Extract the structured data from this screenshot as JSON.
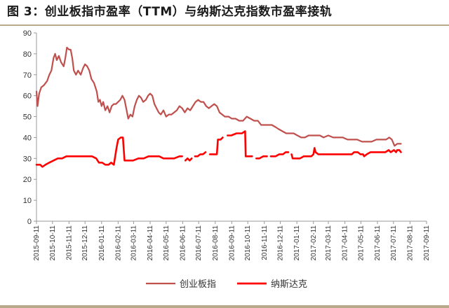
{
  "title": "图 3：创业板指市盈率（TTM）与纳斯达克指数市盈率接轨",
  "colors": {
    "chinext": "#c0504d",
    "nasdaq": "#ff0000",
    "rule": "#b8a98a"
  },
  "chart_data": {
    "type": "line",
    "ylim": [
      0,
      90
    ],
    "yticks": [
      0,
      10,
      20,
      30,
      40,
      50,
      60,
      70,
      80,
      90
    ],
    "x_ticks": [
      "2015-09-11",
      "2015-10-11",
      "2015-11-11",
      "2015-12-11",
      "2016-01-11",
      "2016-02-11",
      "2016-03-11",
      "2016-04-11",
      "2016-05-11",
      "2016-06-11",
      "2016-07-11",
      "2016-08-11",
      "2016-09-11",
      "2016-10-11",
      "2016-11-11",
      "2016-12-11",
      "2017-01-11",
      "2017-02-11",
      "2017-03-11",
      "2017-04-11",
      "2017-05-11",
      "2017-06-11",
      "2017-07-11",
      "2017-08-11",
      "2017-09-11"
    ],
    "legend_position": "bottom",
    "grid": false,
    "series": [
      {
        "name": "创业板指",
        "color_key": "chinext",
        "points": [
          [
            "2015-09-11",
            62
          ],
          [
            "2015-09-13",
            55
          ],
          [
            "2015-09-16",
            61
          ],
          [
            "2015-09-20",
            64
          ],
          [
            "2015-09-25",
            65
          ],
          [
            "2015-10-01",
            67
          ],
          [
            "2015-10-05",
            70
          ],
          [
            "2015-10-09",
            72
          ],
          [
            "2015-10-13",
            78
          ],
          [
            "2015-10-16",
            80
          ],
          [
            "2015-10-19",
            77
          ],
          [
            "2015-10-23",
            79
          ],
          [
            "2015-10-27",
            76
          ],
          [
            "2015-11-01",
            74
          ],
          [
            "2015-11-04",
            78
          ],
          [
            "2015-11-07",
            83
          ],
          [
            "2015-11-11",
            82
          ],
          [
            "2015-11-14",
            82
          ],
          [
            "2015-11-17",
            78
          ],
          [
            "2015-11-20",
            72
          ],
          [
            "2015-11-24",
            70
          ],
          [
            "2015-11-28",
            72
          ],
          [
            "2015-12-03",
            70
          ],
          [
            "2015-12-07",
            73
          ],
          [
            "2015-12-11",
            75
          ],
          [
            "2015-12-15",
            74
          ],
          [
            "2015-12-19",
            72
          ],
          [
            "2015-12-23",
            68
          ],
          [
            "2015-12-28",
            66
          ],
          [
            "2016-01-02",
            62
          ],
          [
            "2016-01-05",
            57
          ],
          [
            "2016-01-08",
            58
          ],
          [
            "2016-01-11",
            55
          ],
          [
            "2016-01-14",
            57
          ],
          [
            "2016-01-18",
            53
          ],
          [
            "2016-01-22",
            55
          ],
          [
            "2016-01-26",
            52
          ],
          [
            "2016-01-30",
            55
          ],
          [
            "2016-02-03",
            56
          ],
          [
            "2016-02-07",
            56
          ],
          [
            "2016-02-11",
            57
          ],
          [
            "2016-02-15",
            58
          ],
          [
            "2016-02-19",
            60
          ],
          [
            "2016-02-23",
            58
          ],
          [
            "2016-02-27",
            53
          ],
          [
            "2016-03-01",
            49
          ],
          [
            "2016-03-05",
            51
          ],
          [
            "2016-03-09",
            50
          ],
          [
            "2016-03-13",
            55
          ],
          [
            "2016-03-17",
            58
          ],
          [
            "2016-03-21",
            60
          ],
          [
            "2016-03-25",
            59
          ],
          [
            "2016-03-29",
            57
          ],
          [
            "2016-04-03",
            58
          ],
          [
            "2016-04-07",
            60
          ],
          [
            "2016-04-11",
            61
          ],
          [
            "2016-04-15",
            60
          ],
          [
            "2016-04-19",
            56
          ],
          [
            "2016-04-23",
            54
          ],
          [
            "2016-04-27",
            52
          ],
          [
            "2016-05-01",
            51
          ],
          [
            "2016-05-06",
            53
          ],
          [
            "2016-05-11",
            50
          ],
          [
            "2016-05-16",
            51
          ],
          [
            "2016-05-21",
            51
          ],
          [
            "2016-05-26",
            52
          ],
          [
            "2016-05-31",
            53
          ],
          [
            "2016-06-05",
            55
          ],
          [
            "2016-06-10",
            54
          ],
          [
            "2016-06-15",
            52
          ],
          [
            "2016-06-20",
            54
          ],
          [
            "2016-06-25",
            53
          ],
          [
            "2016-06-30",
            55
          ],
          [
            "2016-07-05",
            57
          ],
          [
            "2016-07-10",
            58
          ],
          [
            "2016-07-15",
            57
          ],
          [
            "2016-07-20",
            57
          ],
          [
            "2016-07-25",
            55
          ],
          [
            "2016-07-30",
            54
          ],
          [
            "2016-08-04",
            55
          ],
          [
            "2016-08-09",
            56
          ],
          [
            "2016-08-14",
            55
          ],
          [
            "2016-08-19",
            52
          ],
          [
            "2016-08-24",
            51
          ],
          [
            "2016-08-29",
            50
          ],
          [
            "2016-09-05",
            50
          ],
          [
            "2016-09-11",
            49
          ],
          [
            "2016-09-18",
            49
          ],
          [
            "2016-09-25",
            48
          ],
          [
            "2016-10-02",
            48
          ],
          [
            "2016-10-09",
            50
          ],
          [
            "2016-10-16",
            49
          ],
          [
            "2016-10-23",
            48
          ],
          [
            "2016-10-30",
            48
          ],
          [
            "2016-11-05",
            46
          ],
          [
            "2016-11-11",
            46
          ],
          [
            "2016-11-18",
            46
          ],
          [
            "2016-11-25",
            46
          ],
          [
            "2016-12-02",
            45
          ],
          [
            "2016-12-08",
            44
          ],
          [
            "2016-12-15",
            43
          ],
          [
            "2016-12-22",
            42
          ],
          [
            "2016-12-29",
            42
          ],
          [
            "2017-01-05",
            42
          ],
          [
            "2017-01-12",
            41
          ],
          [
            "2017-01-19",
            40
          ],
          [
            "2017-01-26",
            40
          ],
          [
            "2017-02-02",
            41
          ],
          [
            "2017-02-09",
            41
          ],
          [
            "2017-02-16",
            41
          ],
          [
            "2017-02-23",
            41
          ],
          [
            "2017-03-02",
            40
          ],
          [
            "2017-03-11",
            41
          ],
          [
            "2017-03-20",
            40
          ],
          [
            "2017-03-29",
            40
          ],
          [
            "2017-04-07",
            40
          ],
          [
            "2017-04-16",
            39
          ],
          [
            "2017-04-25",
            39
          ],
          [
            "2017-05-04",
            39
          ],
          [
            "2017-05-13",
            38
          ],
          [
            "2017-05-22",
            38
          ],
          [
            "2017-05-31",
            38
          ],
          [
            "2017-06-09",
            39
          ],
          [
            "2017-06-18",
            39
          ],
          [
            "2017-06-27",
            39
          ],
          [
            "2017-07-03",
            40
          ],
          [
            "2017-07-08",
            39
          ],
          [
            "2017-07-13",
            36
          ],
          [
            "2017-07-18",
            37
          ],
          [
            "2017-07-25",
            37
          ]
        ]
      },
      {
        "name": "纳斯达克",
        "color_key": "nasdaq",
        "points": [
          [
            "2015-09-11",
            27
          ],
          [
            "2015-09-18",
            27
          ],
          [
            "2015-09-22",
            26
          ],
          [
            "2015-09-28",
            27
          ],
          [
            "2015-10-05",
            28
          ],
          [
            "2015-10-13",
            29
          ],
          [
            "2015-10-21",
            30
          ],
          [
            "2015-10-29",
            30
          ],
          [
            "2015-11-06",
            31
          ],
          [
            "2015-11-14",
            31
          ],
          [
            "2015-11-22",
            31
          ],
          [
            "2015-11-30",
            31
          ],
          [
            "2015-12-08",
            31
          ],
          [
            "2015-12-16",
            31
          ],
          [
            "2015-12-24",
            31
          ],
          [
            "2016-01-01",
            30
          ],
          [
            "2016-01-06",
            28
          ],
          [
            "2016-01-12",
            28
          ],
          [
            "2016-01-18",
            27
          ],
          [
            "2016-01-24",
            27
          ],
          [
            "2016-01-29",
            28
          ],
          [
            "2016-02-03",
            27
          ],
          [
            "2016-02-08",
            35
          ],
          [
            "2016-02-11",
            39
          ],
          [
            "2016-02-16",
            40
          ],
          [
            "2016-02-20",
            40
          ],
          [
            "2016-02-23",
            29
          ],
          [
            "2016-03-01",
            29
          ],
          [
            "2016-03-10",
            29
          ],
          [
            "2016-03-20",
            30
          ],
          [
            "2016-03-30",
            30
          ],
          [
            "2016-04-08",
            31
          ],
          [
            "2016-04-18",
            31
          ],
          [
            "2016-04-28",
            31
          ],
          [
            "2016-05-06",
            30
          ],
          [
            "2016-05-16",
            30
          ],
          [
            "2016-05-26",
            30
          ],
          [
            "2016-06-05",
            31
          ],
          [
            "2016-06-10",
            31
          ],
          null,
          [
            "2016-06-16",
            29
          ],
          [
            "2016-06-20",
            30
          ],
          [
            "2016-06-24",
            29
          ],
          [
            "2016-06-28",
            30
          ],
          null,
          [
            "2016-07-04",
            31
          ],
          [
            "2016-07-09",
            31
          ],
          [
            "2016-07-14",
            32
          ],
          [
            "2016-07-19",
            32
          ],
          [
            "2016-07-24",
            33
          ],
          null,
          [
            "2016-08-01",
            32
          ],
          [
            "2016-08-09",
            32
          ],
          [
            "2016-08-14",
            32
          ],
          [
            "2016-08-16",
            39
          ],
          [
            "2016-08-21",
            39
          ],
          [
            "2016-08-25",
            40
          ],
          null,
          [
            "2016-09-03",
            41
          ],
          [
            "2016-09-10",
            41
          ],
          [
            "2016-09-20",
            42
          ],
          [
            "2016-09-30",
            42
          ],
          [
            "2016-10-06",
            43
          ],
          [
            "2016-10-07",
            31
          ],
          [
            "2016-10-13",
            31
          ],
          [
            "2016-10-19",
            31
          ],
          null,
          [
            "2016-10-27",
            30
          ],
          [
            "2016-11-02",
            30
          ],
          [
            "2016-11-09",
            31
          ],
          [
            "2016-11-16",
            31
          ],
          null,
          [
            "2016-11-23",
            31
          ],
          [
            "2016-12-02",
            31
          ],
          [
            "2016-12-09",
            32
          ],
          [
            "2016-12-16",
            32
          ],
          [
            "2016-12-21",
            33
          ],
          [
            "2016-12-26",
            33
          ],
          null,
          [
            "2017-01-01",
            32
          ],
          [
            "2017-01-03",
            30
          ],
          [
            "2017-01-10",
            30
          ],
          [
            "2017-01-17",
            30
          ],
          [
            "2017-01-24",
            31
          ],
          [
            "2017-01-31",
            31
          ],
          [
            "2017-02-07",
            31
          ],
          [
            "2017-02-11",
            32
          ],
          [
            "2017-02-13",
            35
          ],
          [
            "2017-02-15",
            33
          ],
          [
            "2017-02-20",
            32
          ],
          [
            "2017-02-27",
            32
          ],
          [
            "2017-03-06",
            32
          ],
          [
            "2017-03-13",
            32
          ],
          [
            "2017-03-20",
            32
          ],
          [
            "2017-03-27",
            32
          ],
          [
            "2017-04-03",
            32
          ],
          [
            "2017-04-10",
            32
          ],
          [
            "2017-04-17",
            32
          ],
          [
            "2017-04-24",
            32
          ],
          [
            "2017-04-28",
            33
          ],
          [
            "2017-05-05",
            33
          ],
          [
            "2017-05-10",
            32
          ],
          [
            "2017-05-15",
            32
          ],
          [
            "2017-05-17",
            31
          ],
          [
            "2017-05-22",
            32
          ],
          [
            "2017-05-29",
            33
          ],
          [
            "2017-06-05",
            33
          ],
          [
            "2017-06-12",
            33
          ],
          [
            "2017-06-19",
            33
          ],
          [
            "2017-06-26",
            33
          ],
          [
            "2017-07-02",
            34
          ],
          [
            "2017-07-06",
            33
          ],
          [
            "2017-07-12",
            34
          ],
          [
            "2017-07-16",
            33
          ],
          [
            "2017-07-18",
            34
          ],
          [
            "2017-07-22",
            34
          ],
          [
            "2017-07-25",
            33
          ]
        ]
      }
    ]
  }
}
